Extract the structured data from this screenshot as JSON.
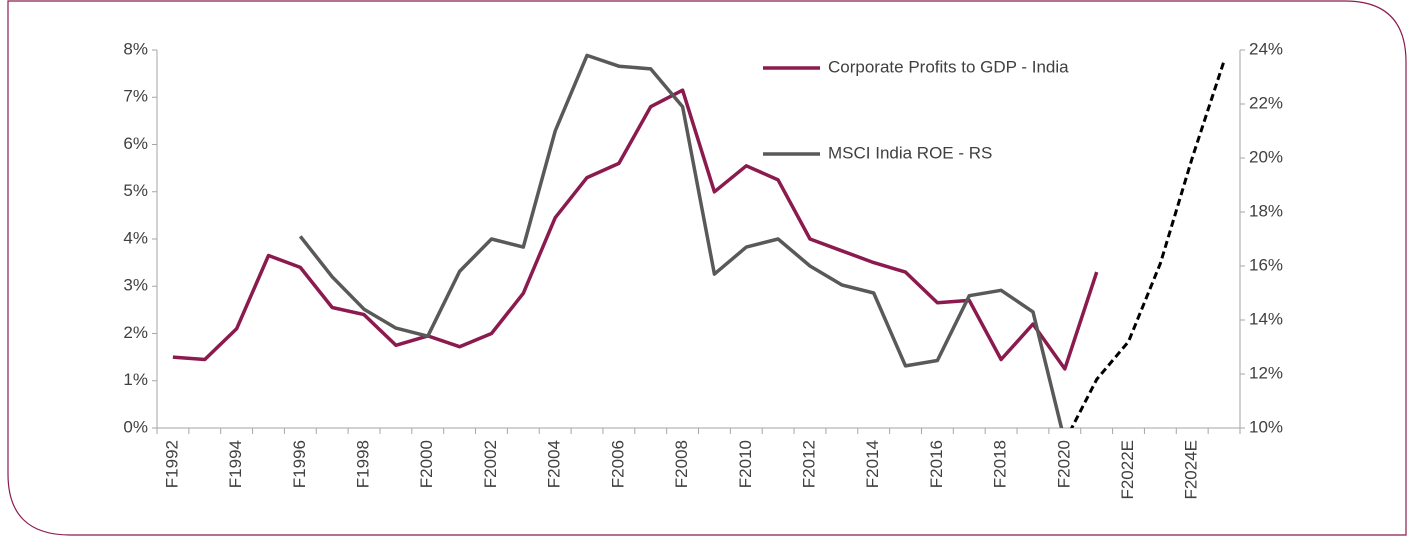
{
  "chart_data": {
    "type": "line",
    "categories": [
      "F1992",
      null,
      "F1994",
      null,
      "F1996",
      null,
      "F1998",
      null,
      "F2000",
      null,
      "F2002",
      null,
      "F2004",
      null,
      "F2006",
      null,
      "F2008",
      null,
      "F2010",
      null,
      "F2012",
      null,
      "F2014",
      null,
      "F2016",
      null,
      "F2018",
      null,
      "F2020",
      null,
      "F2022E",
      null,
      "F2024E",
      null
    ],
    "series": [
      {
        "name": "Corporate Profits to GDP - India",
        "color": "#8b1a4e",
        "values": [
          1.5,
          1.45,
          2.1,
          3.65,
          3.4,
          2.55,
          2.4,
          1.75,
          1.95,
          1.72,
          2.0,
          2.85,
          4.45,
          5.3,
          5.6,
          6.8,
          7.15,
          5.0,
          5.55,
          5.25,
          4.0,
          3.75,
          3.5,
          3.3,
          2.65,
          2.7,
          1.45,
          2.2,
          1.25,
          3.3,
          null,
          null,
          null,
          null
        ]
      },
      {
        "name": "MSCI India ROE - RS",
        "color": "#595959",
        "axis": "y2",
        "values": [
          null,
          null,
          null,
          null,
          17.1,
          15.6,
          14.4,
          13.7,
          13.4,
          15.8,
          17.0,
          16.7,
          21.0,
          23.8,
          23.4,
          23.3,
          21.9,
          15.7,
          16.7,
          17.0,
          16.0,
          15.3,
          15.0,
          12.3,
          12.5,
          14.9,
          15.1,
          14.3,
          9.5,
          null,
          null,
          null,
          null,
          null
        ]
      },
      {
        "color": "#000000",
        "axis": "y2",
        "dashed": true,
        "values": [
          null,
          null,
          null,
          null,
          null,
          null,
          null,
          null,
          null,
          null,
          null,
          null,
          null,
          null,
          null,
          null,
          null,
          null,
          null,
          null,
          null,
          null,
          null,
          null,
          null,
          null,
          null,
          null,
          9.5,
          11.8,
          13.2,
          16.1,
          20.0,
          23.6
        ]
      }
    ],
    "ylim": [
      0,
      8
    ],
    "yticks": [
      {
        "value": 0,
        "label": "0%"
      },
      {
        "value": 1,
        "label": "1%"
      },
      {
        "value": 2,
        "label": "2%"
      },
      {
        "value": 3,
        "label": "3%"
      },
      {
        "value": 4,
        "label": "4%"
      },
      {
        "value": 5,
        "label": "5%"
      },
      {
        "value": 6,
        "label": "6%"
      },
      {
        "value": 7,
        "label": "7%"
      },
      {
        "value": 8,
        "label": "8%"
      }
    ],
    "y2lim": [
      10,
      24
    ],
    "y2ticks": [
      {
        "value": 10,
        "label": "10%"
      },
      {
        "value": 12,
        "label": "12%"
      },
      {
        "value": 14,
        "label": "14%"
      },
      {
        "value": 16,
        "label": "16%"
      },
      {
        "value": 18,
        "label": "18%"
      },
      {
        "value": 20,
        "label": "20%"
      },
      {
        "value": 22,
        "label": "22%"
      },
      {
        "value": 24,
        "label": "24%"
      }
    ],
    "legend": "upper right",
    "grid": false
  }
}
